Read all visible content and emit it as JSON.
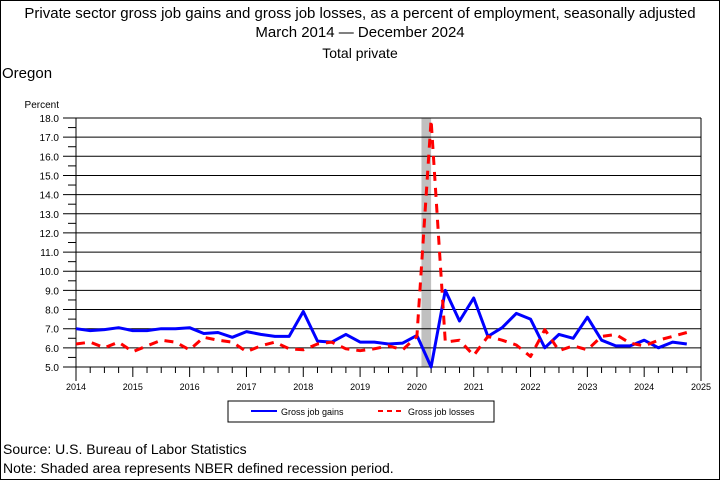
{
  "header": {
    "title_line1": "Private sector gross job gains and gross job losses, as a percent of employment, seasonally adjusted",
    "title_line2": "March 2014 — December 2024",
    "title_line3": "Total private",
    "region": "Oregon"
  },
  "footer": {
    "source": "Source: U.S. Bureau of Labor Statistics",
    "note": "Note: Shaded area represents NBER defined recession period."
  },
  "chart_data": {
    "type": "line",
    "title": "Private sector gross job gains and gross job losses, as a percent of employment, seasonally adjusted",
    "ylabel": "Percent",
    "xlabel": "",
    "ylim": [
      5.0,
      18.0
    ],
    "xlim": [
      2014,
      2025
    ],
    "yticks": [
      "5.0",
      "6.0",
      "7.0",
      "8.0",
      "9.0",
      "10.0",
      "11.0",
      "12.0",
      "13.0",
      "14.0",
      "15.0",
      "16.0",
      "17.0",
      "18.0"
    ],
    "xticks": [
      "2014",
      "2015",
      "2016",
      "2017",
      "2018",
      "2019",
      "2020",
      "2021",
      "2022",
      "2023",
      "2024",
      "2025"
    ],
    "grid": true,
    "legend_placement": "bottom-center",
    "recession": [
      2020.08,
      2020.25
    ],
    "x_start": 2014.0,
    "x_step": 0.25,
    "series": [
      {
        "name": "Gross job gains",
        "color": "#0000ff",
        "style": "solid",
        "values": [
          7.0,
          6.9,
          6.95,
          7.05,
          6.9,
          6.9,
          7.0,
          7.0,
          7.05,
          6.75,
          6.8,
          6.55,
          6.85,
          6.7,
          6.6,
          6.6,
          7.9,
          6.35,
          6.3,
          6.7,
          6.3,
          6.3,
          6.2,
          6.25,
          6.65,
          5.0,
          9.0,
          7.4,
          8.6,
          6.6,
          7.05,
          7.8,
          7.5,
          6.0,
          6.7,
          6.5,
          7.6,
          6.4,
          6.1,
          6.1,
          6.4,
          6.0,
          6.3,
          6.2
        ]
      },
      {
        "name": "Gross job losses",
        "color": "#ff0000",
        "style": "dashed",
        "values": [
          6.2,
          6.3,
          6.0,
          6.3,
          5.8,
          6.1,
          6.4,
          6.3,
          5.9,
          6.55,
          6.4,
          6.3,
          5.8,
          6.1,
          6.3,
          5.95,
          5.9,
          6.2,
          6.3,
          5.95,
          5.85,
          5.95,
          6.1,
          5.9,
          6.6,
          17.9,
          6.3,
          6.4,
          5.6,
          6.6,
          6.4,
          6.15,
          5.55,
          6.95,
          5.85,
          6.1,
          5.9,
          6.6,
          6.7,
          6.25,
          6.1,
          6.4,
          6.6,
          6.8
        ]
      }
    ]
  }
}
